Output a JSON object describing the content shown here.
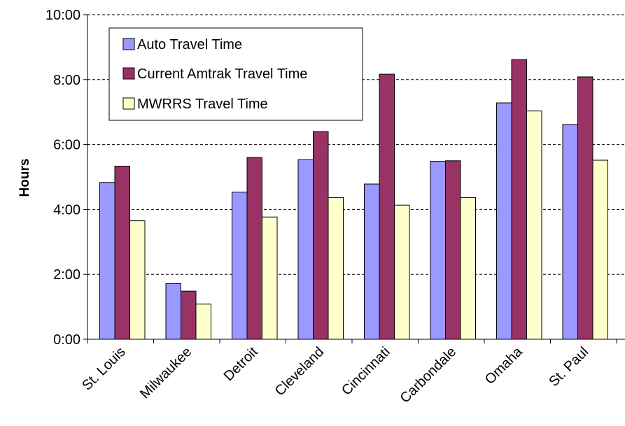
{
  "chart_data": {
    "type": "bar",
    "title": "",
    "xlabel": "",
    "ylabel": "Hours",
    "ylim": [
      0,
      600
    ],
    "y_ticks": [
      {
        "value": 0,
        "label": "0:00"
      },
      {
        "value": 120,
        "label": "2:00"
      },
      {
        "value": 240,
        "label": "4:00"
      },
      {
        "value": 360,
        "label": "6:00"
      },
      {
        "value": 480,
        "label": "8:00"
      },
      {
        "value": 600,
        "label": "10:00"
      }
    ],
    "grid": true,
    "legend_position": "top-left",
    "categories": [
      "St. Louis",
      "Milwaukee",
      "Detroit",
      "Cleveland",
      "Cincinnati",
      "Carbondale",
      "Omaha",
      "St. Paul"
    ],
    "series": [
      {
        "name": "Auto Travel Time",
        "color": "#9999ff",
        "values": [
          290,
          103,
          272,
          332,
          287,
          329,
          437,
          397
        ]
      },
      {
        "name": "Current Amtrak Travel Time",
        "color": "#993366",
        "values": [
          320,
          89,
          336,
          384,
          490,
          330,
          517,
          485
        ]
      },
      {
        "name": "MWRRS Travel Time",
        "color": "#ffffcc",
        "values": [
          219,
          65,
          226,
          262,
          248,
          262,
          422,
          331
        ]
      }
    ]
  }
}
